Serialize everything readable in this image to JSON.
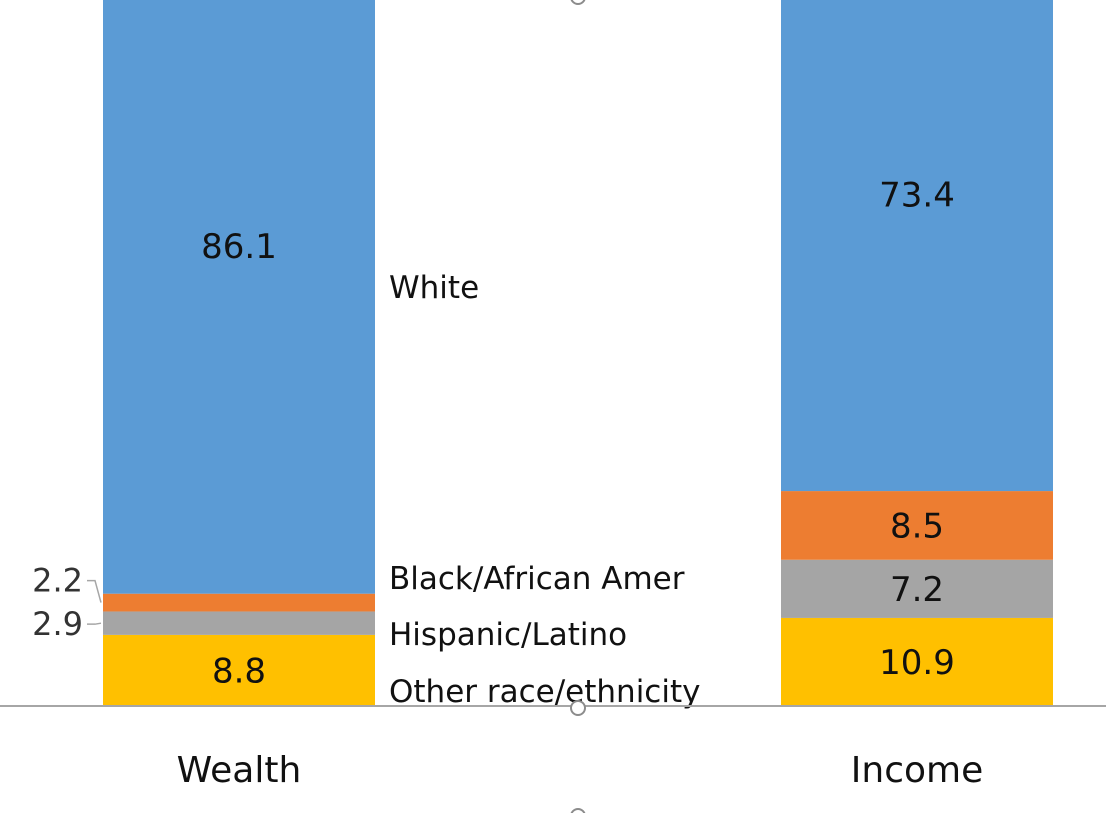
{
  "chart_data": {
    "type": "bar",
    "stacked": true,
    "categories": [
      "Wealth",
      "Income"
    ],
    "series": [
      {
        "name": "Other race/ethnicity",
        "values": [
          8.8,
          10.9
        ],
        "color": "#FFC000",
        "labels": [
          "8.8",
          "10.9"
        ]
      },
      {
        "name": "Hispanic/Latino",
        "values": [
          2.9,
          7.2
        ],
        "color": "#A5A5A5",
        "labels": [
          "2.9",
          "7.2"
        ]
      },
      {
        "name": "Black/African Amer",
        "values": [
          2.2,
          8.5
        ],
        "color": "#ED7D31",
        "labels": [
          "2.2",
          "8.5"
        ]
      },
      {
        "name": "White",
        "values": [
          86.1,
          73.4
        ],
        "color": "#5B9BD5",
        "labels": [
          "86.1",
          "73.4"
        ]
      }
    ],
    "ylim": [
      0,
      100
    ],
    "gridlines": false,
    "legend_placement": "between bars",
    "axis_color": "#A6A6A6"
  }
}
